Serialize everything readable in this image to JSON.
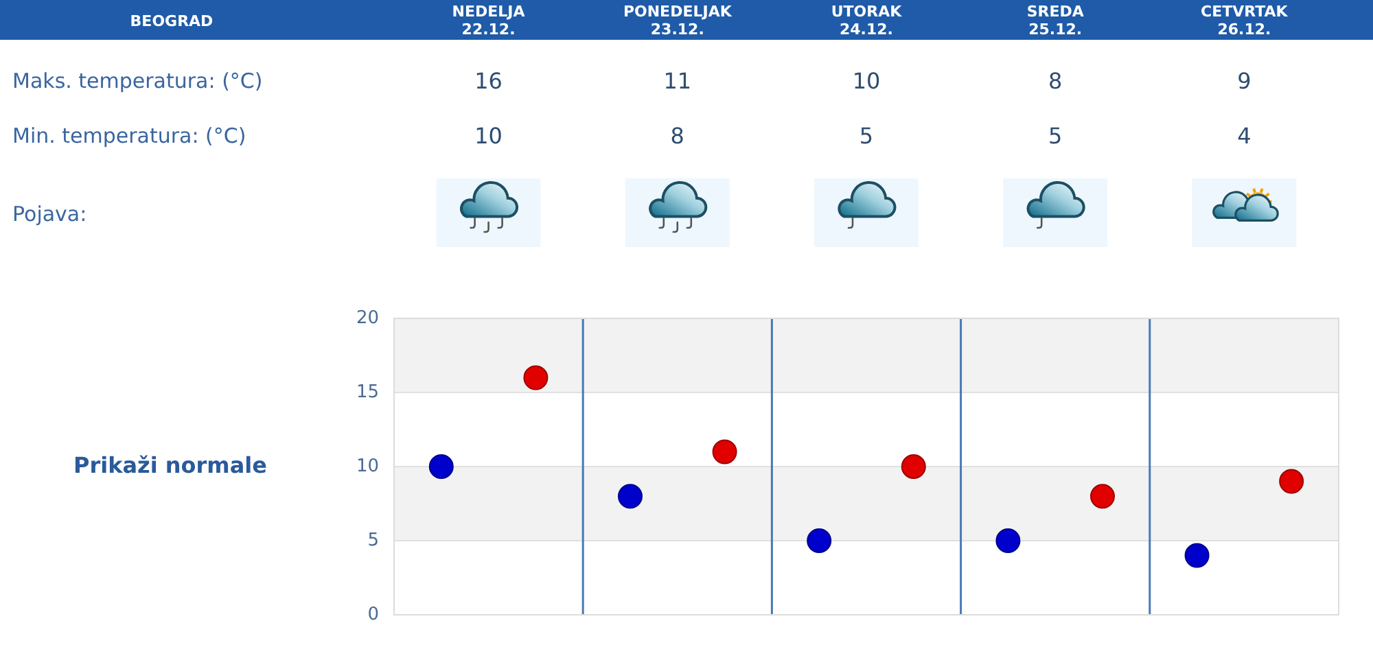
{
  "chart_data": {
    "type": "scatter",
    "title": "BEOGRAD",
    "categories": [
      null,
      null,
      null,
      null,
      null
    ],
    "series": [
      {
        "color": "#e00000",
        "values": [
          16,
          11,
          10,
          8,
          9
        ]
      },
      {
        "color": "#0000cc",
        "values": [
          10,
          8,
          5,
          5,
          4
        ]
      }
    ],
    "ylim": [
      0,
      20
    ],
    "yticks": [
      0,
      5,
      10,
      15,
      20
    ],
    "grid": true,
    "marker": "circle",
    "data_labels": true,
    "annotations": [
      "NEDELJA 22.12.",
      "PONEDELJAK 23.12.",
      "UTORAK 24.12.",
      "SREDA 25.12.",
      "CETVRTAK 26.12.",
      "Maks. temperatura: (°C)",
      "Min. temperatura: (°C)",
      "Pojava:",
      "Prikaži normale"
    ]
  }
}
